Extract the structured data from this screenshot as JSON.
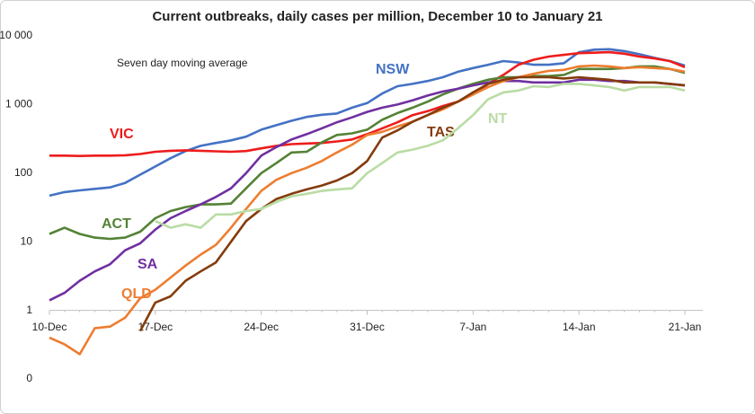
{
  "chart_data": {
    "type": "line",
    "title": "Current outbreaks, daily cases per million, December 10 to January 21",
    "subtitle": "Seven day moving average",
    "categories": [
      "10-Dec",
      null,
      null,
      null,
      null,
      null,
      null,
      "17-Dec",
      null,
      null,
      null,
      null,
      null,
      null,
      "24-Dec",
      null,
      null,
      null,
      null,
      null,
      null,
      "31-Dec",
      null,
      null,
      null,
      null,
      null,
      null,
      "7-Jan",
      null,
      null,
      null,
      null,
      null,
      null,
      "14-Jan",
      null,
      null,
      null,
      null,
      null,
      null,
      "21-Jan"
    ],
    "log_scale": true,
    "ylim": [
      0.1,
      10000
    ],
    "yticks": [
      {
        "value": 0.1,
        "label": "0"
      },
      1,
      10,
      100,
      {
        "value": 1000,
        "label": "1 000"
      },
      {
        "value": 10000,
        "label": "10 000"
      }
    ],
    "grid": false,
    "series": [
      {
        "name": "NSW",
        "color": "#4472c4",
        "values": [
          47,
          53,
          56,
          59,
          62,
          72,
          95,
          125,
          165,
          210,
          250,
          275,
          300,
          340,
          430,
          500,
          580,
          660,
          710,
          740,
          900,
          1050,
          1450,
          1850,
          2000,
          2200,
          2500,
          3000,
          3400,
          3800,
          4300,
          4100,
          3800,
          3800,
          4000,
          5800,
          6300,
          6400,
          6000,
          5400,
          4800,
          4300,
          3700
        ]
      },
      {
        "name": "VIC",
        "color": "#ee1c1c",
        "values": [
          180,
          180,
          178,
          180,
          180,
          182,
          190,
          205,
          212,
          215,
          212,
          208,
          205,
          210,
          230,
          250,
          265,
          270,
          275,
          290,
          310,
          370,
          450,
          550,
          700,
          800,
          950,
          1100,
          1400,
          2000,
          2700,
          3800,
          4500,
          5000,
          5300,
          5600,
          5700,
          5800,
          5500,
          5000,
          4700,
          4300,
          3500
        ]
      },
      {
        "name": "ACT",
        "color": "#548235",
        "values": [
          13,
          16,
          13,
          11.5,
          11,
          11.5,
          14,
          22,
          28,
          32,
          35,
          35,
          36,
          60,
          100,
          140,
          200,
          205,
          280,
          360,
          380,
          430,
          600,
          750,
          900,
          1100,
          1400,
          1700,
          2000,
          2300,
          2500,
          2500,
          2600,
          2600,
          2700,
          3300,
          3300,
          3300,
          3400,
          3600,
          3600,
          3300,
          2900
        ]
      },
      {
        "name": "SA",
        "color": "#7030a0",
        "values": [
          1.4,
          1.8,
          2.7,
          3.7,
          4.7,
          7.5,
          9.5,
          15,
          22,
          28,
          35,
          45,
          60,
          100,
          180,
          240,
          310,
          370,
          450,
          550,
          650,
          780,
          900,
          1000,
          1150,
          1350,
          1550,
          1700,
          1900,
          2100,
          2200,
          2200,
          2100,
          2100,
          2100,
          2300,
          2300,
          2200,
          2200,
          2100,
          2100,
          2000,
          1900
        ]
      },
      {
        "name": "QLD",
        "color": "#ed7d31",
        "values": [
          0.4,
          0.32,
          0.23,
          0.55,
          0.58,
          0.78,
          1.5,
          2,
          3,
          4.5,
          6.5,
          9,
          16,
          30,
          55,
          80,
          100,
          120,
          150,
          200,
          260,
          360,
          400,
          480,
          560,
          700,
          850,
          1100,
          1400,
          1800,
          2200,
          2500,
          2800,
          3100,
          3200,
          3600,
          3700,
          3600,
          3400,
          3500,
          3400,
          3300,
          3000
        ]
      },
      {
        "name": "TAS",
        "color": "#843c0c",
        "values": [
          null,
          null,
          null,
          null,
          null,
          null,
          0.5,
          1.3,
          1.6,
          2.7,
          3.7,
          5,
          10,
          20,
          30,
          42,
          50,
          58,
          66,
          78,
          100,
          150,
          330,
          420,
          560,
          700,
          900,
          1100,
          1500,
          2000,
          2300,
          2500,
          2500,
          2500,
          2400,
          2500,
          2400,
          2300,
          2100,
          2100,
          2100,
          2000,
          1900
        ]
      },
      {
        "name": "NT",
        "color": "#b9dca4",
        "values": [
          null,
          null,
          null,
          null,
          null,
          null,
          null,
          20,
          16,
          18,
          16,
          25,
          25,
          28,
          30,
          38,
          46,
          50,
          55,
          58,
          60,
          100,
          140,
          200,
          220,
          250,
          300,
          450,
          700,
          1200,
          1500,
          1600,
          1850,
          1800,
          2000,
          2000,
          1900,
          1800,
          1600,
          1800,
          1800,
          1800,
          1600
        ]
      }
    ]
  }
}
